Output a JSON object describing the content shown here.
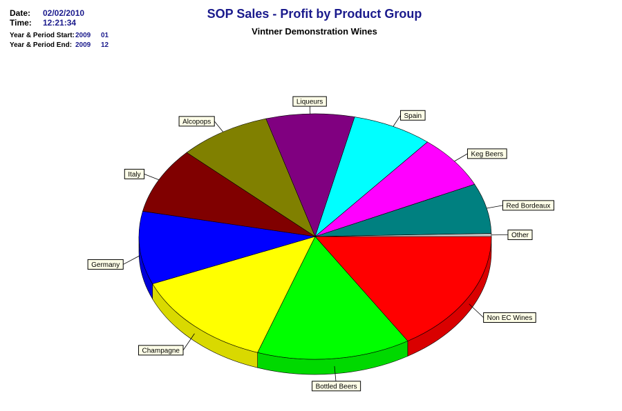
{
  "header": {
    "date_label": "Date:",
    "date_value": "02/02/2010",
    "time_label": "Time:",
    "time_value": "12:21:34",
    "start_label": "Year & Period Start:",
    "start_year": "2009",
    "start_period": "01",
    "end_label": "Year & Period End:",
    "end_year": "2009",
    "end_period": "12"
  },
  "chart_data": {
    "type": "pie",
    "title": "SOP Sales - Profit by Product Group",
    "subtitle": "Vintner Demonstration Wines",
    "style": "3d-tilted",
    "slices": [
      {
        "label": "Non EC Wines",
        "percent": 16.2,
        "color": "#ff0000"
      },
      {
        "label": "Bottled Beers",
        "percent": 14.1,
        "color": "#00ff00"
      },
      {
        "label": "Champagne",
        "percent": 13.4,
        "color": "#ffff00"
      },
      {
        "label": "Germany",
        "percent": 9.6,
        "color": "#0000ff"
      },
      {
        "label": "Italy",
        "percent": 8.7,
        "color": "#800000"
      },
      {
        "label": "Alcopops",
        "percent": 8.5,
        "color": "#808000"
      },
      {
        "label": "Liqueurs",
        "percent": 8.1,
        "color": "#800080"
      },
      {
        "label": "Spain",
        "percent": 7.4,
        "color": "#00ffff"
      },
      {
        "label": "Keg Beers",
        "percent": 7.0,
        "color": "#ff00ff"
      },
      {
        "label": "Red Bordeaux",
        "percent": 6.6,
        "color": "#008080"
      },
      {
        "label": "Other",
        "percent": 0.4,
        "color": "#c0c0c0"
      }
    ]
  }
}
